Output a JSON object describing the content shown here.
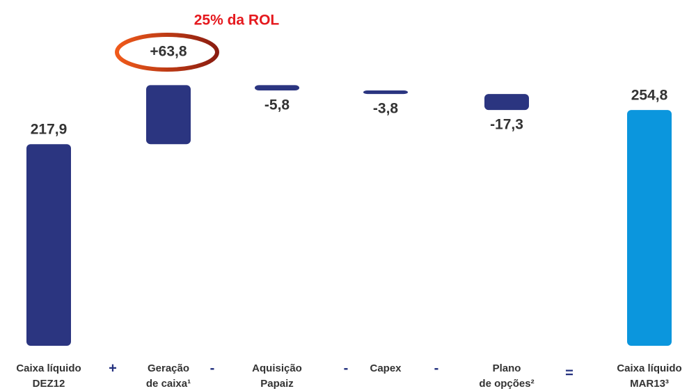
{
  "chart_data": {
    "type": "waterfall",
    "categories": [
      "Caixa líquido\nDEZ12",
      "Geração\nde caixa¹",
      "Aquisição\nPapaiz",
      "Capex",
      "Plano\nde opções²",
      "Caixa líquido\nMAR13³"
    ],
    "values": [
      217.9,
      63.8,
      -5.8,
      -3.8,
      -17.3,
      254.8
    ],
    "value_labels": [
      "217,9",
      "+63,8",
      "-5,8",
      "-3,8",
      "-17,3",
      "254,8"
    ],
    "measure": [
      "absolute",
      "relative",
      "relative",
      "relative",
      "relative",
      "total"
    ],
    "operators": [
      "+",
      "-",
      "-",
      "-",
      "="
    ],
    "color": "#2b3580",
    "total_color": "#0b96dd",
    "annotation": "25% da ROL"
  }
}
